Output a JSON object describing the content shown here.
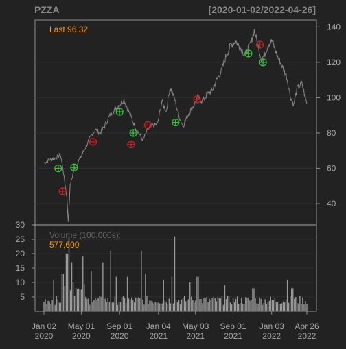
{
  "header": {
    "symbol": "PZZA",
    "date_range": "[2020-01-02/2022-04-26]"
  },
  "price_panel": {
    "last_label": "Last 96.32"
  },
  "volume_panel": {
    "label": "Volume (100,000s):",
    "value_label": "577,600"
  },
  "colors": {
    "background": "#222222",
    "panel_border": "#aaaaaa",
    "price_line": "#8a8a8a",
    "volume_bar": "#9a9a9a",
    "accent": "#ff9900",
    "buy_marker": "#33cc33",
    "sell_marker": "#cc2222",
    "header_text": "#888888"
  },
  "chart_data": [
    {
      "type": "line",
      "title": "PZZA",
      "x_start": "2020-01-02",
      "x_end": "2022-04-26",
      "ylim": [
        28,
        144
      ],
      "y_ticks": [
        40,
        60,
        80,
        100,
        120,
        140
      ],
      "price_points": [
        [
          "2020-01-02",
          63
        ],
        [
          "2020-01-20",
          65
        ],
        [
          "2020-02-10",
          66
        ],
        [
          "2020-02-24",
          68
        ],
        [
          "2020-03-03",
          60
        ],
        [
          "2020-03-09",
          52
        ],
        [
          "2020-03-16",
          44
        ],
        [
          "2020-03-18",
          36
        ],
        [
          "2020-03-20",
          30
        ],
        [
          "2020-03-26",
          50
        ],
        [
          "2020-04-06",
          58
        ],
        [
          "2020-04-15",
          62
        ],
        [
          "2020-05-01",
          67
        ],
        [
          "2020-05-15",
          72
        ],
        [
          "2020-06-01",
          78
        ],
        [
          "2020-06-15",
          82
        ],
        [
          "2020-07-01",
          80
        ],
        [
          "2020-07-15",
          84
        ],
        [
          "2020-08-01",
          90
        ],
        [
          "2020-08-15",
          93
        ],
        [
          "2020-09-01",
          96
        ],
        [
          "2020-09-15",
          99
        ],
        [
          "2020-10-01",
          92
        ],
        [
          "2020-10-15",
          86
        ],
        [
          "2020-11-01",
          80
        ],
        [
          "2020-11-15",
          76
        ],
        [
          "2020-12-01",
          82
        ],
        [
          "2020-12-15",
          84
        ],
        [
          "2021-01-01",
          85
        ],
        [
          "2021-01-15",
          98
        ],
        [
          "2021-01-29",
          92
        ],
        [
          "2021-02-10",
          106
        ],
        [
          "2021-02-24",
          100
        ],
        [
          "2021-03-10",
          90
        ],
        [
          "2021-03-24",
          84
        ],
        [
          "2021-04-08",
          90
        ],
        [
          "2021-04-25",
          95
        ],
        [
          "2021-05-10",
          100
        ],
        [
          "2021-05-25",
          98
        ],
        [
          "2021-06-10",
          102
        ],
        [
          "2021-06-25",
          104
        ],
        [
          "2021-07-10",
          110
        ],
        [
          "2021-07-25",
          115
        ],
        [
          "2021-08-10",
          124
        ],
        [
          "2021-08-25",
          130
        ],
        [
          "2021-09-10",
          132
        ],
        [
          "2021-09-25",
          128
        ],
        [
          "2021-10-10",
          124
        ],
        [
          "2021-10-25",
          130
        ],
        [
          "2021-11-08",
          138
        ],
        [
          "2021-11-22",
          128
        ],
        [
          "2021-12-01",
          122
        ],
        [
          "2021-12-10",
          124
        ],
        [
          "2021-12-25",
          131
        ],
        [
          "2022-01-05",
          132
        ],
        [
          "2022-01-20",
          124
        ],
        [
          "2022-02-05",
          118
        ],
        [
          "2022-02-20",
          112
        ],
        [
          "2022-03-05",
          100
        ],
        [
          "2022-03-15",
          96
        ],
        [
          "2022-03-25",
          105
        ],
        [
          "2022-04-10",
          108
        ],
        [
          "2022-04-26",
          96.32
        ]
      ],
      "buy_signals": [
        [
          "2020-02-17",
          60
        ],
        [
          "2020-04-08",
          60.5
        ],
        [
          "2020-09-01",
          92
        ],
        [
          "2020-10-15",
          80
        ],
        [
          "2021-02-28",
          86
        ],
        [
          "2021-10-20",
          125
        ],
        [
          "2021-12-06",
          120
        ]
      ],
      "sell_signals": [
        [
          "2020-03-02",
          47
        ],
        [
          "2020-06-08",
          75
        ],
        [
          "2020-10-08",
          73.5
        ],
        [
          "2020-12-01",
          84.5
        ],
        [
          "2021-05-08",
          99
        ],
        [
          "2021-11-26",
          130
        ]
      ]
    },
    {
      "type": "bar",
      "title": "Volume (100,000s):",
      "ylim": [
        0,
        30
      ],
      "y_ticks": [
        5,
        10,
        15,
        20,
        25,
        30
      ],
      "x_ticks": [
        {
          "date": "2020-01-02",
          "label": [
            "Jan 02",
            "2020"
          ]
        },
        {
          "date": "2020-05-01",
          "label": [
            "May 01",
            "2020"
          ]
        },
        {
          "date": "2020-09-01",
          "label": [
            "Sep 01",
            "2020"
          ]
        },
        {
          "date": "2021-01-04",
          "label": [
            "Jan 04",
            "2021"
          ]
        },
        {
          "date": "2021-05-03",
          "label": [
            "May 03",
            "2021"
          ]
        },
        {
          "date": "2021-09-01",
          "label": [
            "Sep 01",
            "2021"
          ]
        },
        {
          "date": "2022-01-03",
          "label": [
            "Jan 03",
            "2022"
          ]
        },
        {
          "date": "2022-04-26",
          "label": [
            "Apr 26",
            "2022"
          ]
        }
      ],
      "volume_spikes": [
        [
          "2020-02-01",
          11
        ],
        [
          "2020-03-02",
          13
        ],
        [
          "2020-03-16",
          20
        ],
        [
          "2020-03-23",
          26
        ],
        [
          "2020-04-01",
          17
        ],
        [
          "2020-05-06",
          19
        ],
        [
          "2020-06-01",
          14
        ],
        [
          "2020-07-10",
          17
        ],
        [
          "2020-08-05",
          21
        ],
        [
          "2020-08-20",
          12
        ],
        [
          "2020-09-25",
          12
        ],
        [
          "2020-11-10",
          21
        ],
        [
          "2020-11-25",
          13
        ],
        [
          "2021-01-20",
          11
        ],
        [
          "2021-02-15",
          12
        ],
        [
          "2021-02-25",
          26
        ],
        [
          "2021-04-15",
          10
        ],
        [
          "2021-05-10",
          12
        ],
        [
          "2021-08-05",
          9
        ],
        [
          "2021-11-05",
          8
        ],
        [
          "2022-02-24",
          11
        ],
        [
          "2022-03-10",
          8
        ]
      ],
      "last_volume": 577600
    }
  ]
}
